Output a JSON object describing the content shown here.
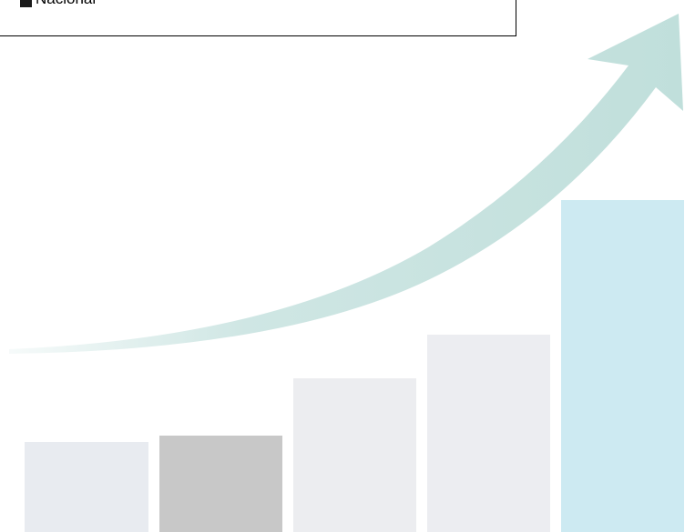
{
  "legend": {
    "items": [
      "Nacional"
    ]
  }
}
